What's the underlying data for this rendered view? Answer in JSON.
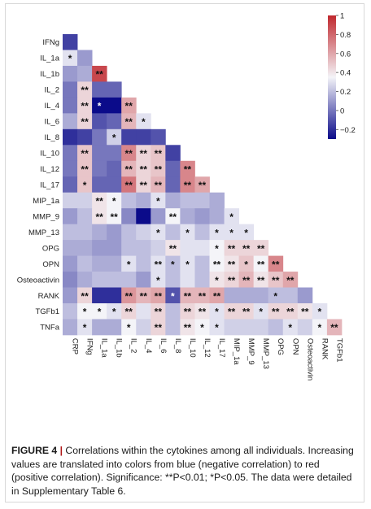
{
  "chart_data": {
    "type": "heatmap",
    "variables": [
      "CRP",
      "IFNg",
      "IL_1a",
      "IL_1b",
      "IL_2",
      "IL_4",
      "IL_6",
      "IL_8",
      "IL_10",
      "IL_12",
      "IL_17",
      "MIP_1a",
      "MMP_9",
      "MMP_13",
      "OPG",
      "OPN",
      "Osteoactivin",
      "RANK",
      "TGFb1",
      "TNFa"
    ],
    "row_labels": [
      "IFNg",
      "IL_1a",
      "IL_1b",
      "IL_2",
      "IL_4",
      "IL_6",
      "IL_8",
      "IL_10",
      "IL_12",
      "IL_17",
      "MIP_1a",
      "MMP_9",
      "MMP_13",
      "OPG",
      "OPN",
      "Osteoactivin",
      "RANK",
      "TGFb1",
      "TNFa"
    ],
    "col_labels": [
      "CRP",
      "IFNg",
      "IL_1a",
      "IL_1b",
      "IL_2",
      "IL_4",
      "IL_6",
      "IL_8",
      "IL_10",
      "IL_12",
      "IL_17",
      "MIP_1a",
      "MMP_9",
      "MMP_13",
      "OPG",
      "OPN",
      "Osteoactivin",
      "RANK",
      "TGFb1"
    ],
    "values": [
      [
        -0.15
      ],
      [
        0.3,
        0.1
      ],
      [
        0.1,
        0.15,
        0.9
      ],
      [
        0.0,
        0.45,
        -0.05,
        -0.05
      ],
      [
        0.0,
        0.45,
        -0.3,
        -0.3,
        0.6
      ],
      [
        0.15,
        0.45,
        -0.1,
        -0.05,
        0.55,
        0.3
      ],
      [
        -0.2,
        -0.15,
        0.0,
        0.25,
        -0.15,
        -0.15,
        -0.1
      ],
      [
        0.0,
        0.5,
        0.0,
        0.0,
        0.7,
        0.45,
        0.5,
        -0.15
      ],
      [
        0.0,
        0.5,
        0.0,
        -0.05,
        0.55,
        0.45,
        0.5,
        -0.05,
        0.7
      ],
      [
        -0.05,
        0.5,
        -0.05,
        -0.05,
        0.75,
        0.45,
        0.55,
        -0.05,
        0.7,
        0.6
      ],
      [
        0.25,
        0.25,
        0.4,
        0.35,
        0.2,
        0.15,
        0.3,
        0.15,
        0.2,
        0.2,
        0.15
      ],
      [
        0.1,
        0.2,
        0.4,
        0.35,
        0.05,
        -0.35,
        0.1,
        0.35,
        0.15,
        0.1,
        0.15,
        0.3
      ],
      [
        0.2,
        0.2,
        0.15,
        0.1,
        0.2,
        0.25,
        0.3,
        0.2,
        0.3,
        0.2,
        0.3,
        0.3,
        0.3
      ],
      [
        0.15,
        0.15,
        0.1,
        0.1,
        0.2,
        0.2,
        0.25,
        0.4,
        0.3,
        0.3,
        0.35,
        0.45,
        0.45,
        0.45
      ],
      [
        0.1,
        0.2,
        0.15,
        0.15,
        0.3,
        0.2,
        0.3,
        0.2,
        0.3,
        0.2,
        0.35,
        0.4,
        0.5,
        0.35,
        0.7
      ],
      [
        0.05,
        0.15,
        0.2,
        0.2,
        0.2,
        0.1,
        0.3,
        0.2,
        0.3,
        0.2,
        0.4,
        0.45,
        0.55,
        0.4,
        0.5,
        0.6
      ],
      [
        0.1,
        0.45,
        -0.2,
        -0.2,
        0.65,
        0.55,
        0.6,
        -0.1,
        0.55,
        0.55,
        0.6,
        0.15,
        0.15,
        0.15,
        0.2,
        0.2,
        0.1
      ],
      [
        0.2,
        0.35,
        0.35,
        0.3,
        0.45,
        0.3,
        0.45,
        0.2,
        0.45,
        0.4,
        0.3,
        0.45,
        0.45,
        0.3,
        0.45,
        0.45,
        0.4,
        0.3
      ],
      [
        0.15,
        0.3,
        0.15,
        0.15,
        0.35,
        0.25,
        0.45,
        0.2,
        0.4,
        0.35,
        0.3,
        0.25,
        0.25,
        0.25,
        0.2,
        0.3,
        0.25,
        0.35,
        0.55
      ]
    ],
    "significance": [
      [
        ""
      ],
      [
        "*",
        ""
      ],
      [
        "",
        "",
        "**"
      ],
      [
        "",
        "**",
        "",
        ""
      ],
      [
        "",
        "**",
        "*",
        "",
        "**"
      ],
      [
        "",
        "**",
        "",
        "",
        "**",
        "*"
      ],
      [
        "",
        "",
        "",
        "*",
        "",
        "",
        ""
      ],
      [
        "",
        "**",
        "",
        "",
        "**",
        "**",
        "**",
        ""
      ],
      [
        "",
        "**",
        "",
        "",
        "**",
        "**",
        "**",
        "",
        "**"
      ],
      [
        "",
        "*",
        "",
        "",
        "**",
        "**",
        "**",
        "",
        "**",
        "**"
      ],
      [
        "",
        "",
        "**",
        "*",
        "",
        "",
        "*",
        "",
        "",
        "",
        ""
      ],
      [
        "",
        "",
        "**",
        "**",
        "",
        "",
        "",
        "**",
        "",
        "",
        "",
        "*"
      ],
      [
        "",
        "",
        "",
        "",
        "",
        "",
        "*",
        "",
        "*",
        "",
        "*",
        "*",
        "*"
      ],
      [
        "",
        "",
        "",
        "",
        "",
        "",
        "",
        "**",
        "",
        "",
        "*",
        "**",
        "**",
        "**"
      ],
      [
        "",
        "",
        "",
        "",
        "*",
        "",
        "**",
        "*",
        "*",
        "",
        "**",
        "**",
        "*",
        "**",
        "**"
      ],
      [
        "",
        "",
        "",
        "",
        "",
        "",
        "*",
        "",
        "",
        "",
        "*",
        "**",
        "**",
        "**",
        "**",
        "**"
      ],
      [
        "",
        "**",
        "",
        "",
        "**",
        "**",
        "**",
        "*",
        "**",
        "**",
        "**",
        "",
        "",
        "",
        "*",
        "",
        ""
      ],
      [
        "",
        "*",
        "*",
        "*",
        "**",
        "",
        "**",
        "",
        "**",
        "**",
        "*",
        "**",
        "**",
        "*",
        "**",
        "**",
        "**",
        "*"
      ],
      [
        "",
        "*",
        "",
        "",
        "*",
        "",
        "**",
        "",
        "**",
        "*",
        "*",
        "",
        "",
        "",
        "",
        "*",
        "",
        "*",
        "**"
      ]
    ],
    "color_scale": {
      "min": -0.3,
      "max": 1,
      "stops": [
        {
          "value": -0.3,
          "color": "#0b0b8a"
        },
        {
          "value": 0.35,
          "color": "#f4f4f8"
        },
        {
          "value": 1,
          "color": "#c0282e"
        }
      ]
    },
    "colorbar": {
      "ticks": [
        1,
        0.8,
        0.6,
        0.4,
        0.2,
        0,
        -0.2
      ],
      "tick_labels": [
        "1",
        "0.8",
        "0.6",
        "0.4",
        "0.2",
        "0",
        "−0.2"
      ],
      "placement": "top-right"
    }
  },
  "caption": {
    "label": "FIGURE 4",
    "separator": "|",
    "text": "Correlations within the cytokines among all individuals. Increasing values are translated into colors from blue (negative correlation) to red (positive correlation). Significance: **P<0.01; *P<0.05. The data were detailed in Supplementary Table 6."
  }
}
